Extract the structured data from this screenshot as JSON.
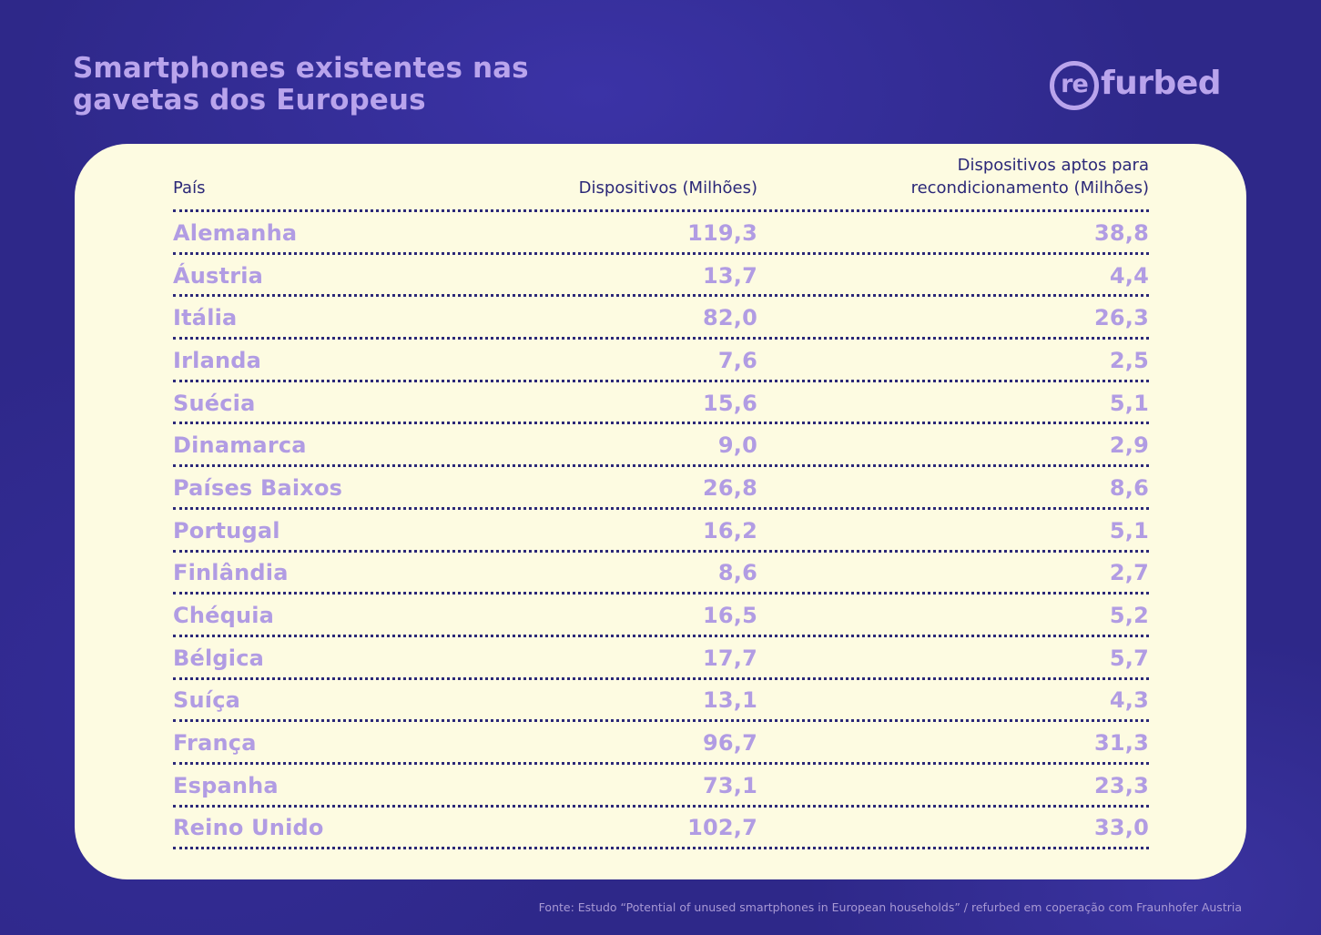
{
  "title": {
    "line1": "Smartphones existentes nas",
    "line2": "gavetas dos Europeus"
  },
  "logo": {
    "re": "re",
    "rest": "furbed"
  },
  "table": {
    "headers": {
      "country": "País",
      "devices": "Dispositivos (Milhões)",
      "refurbishable_line1": "Dispositivos aptos para",
      "refurbishable_line2": "recondicionamento (Milhões)"
    },
    "rows": [
      {
        "country": "Alemanha",
        "devices": "119,3",
        "refurbishable": "38,8"
      },
      {
        "country": "Áustria",
        "devices": "13,7",
        "refurbishable": "4,4"
      },
      {
        "country": "Itália",
        "devices": "82,0",
        "refurbishable": "26,3"
      },
      {
        "country": "Irlanda",
        "devices": "7,6",
        "refurbishable": "2,5"
      },
      {
        "country": "Suécia",
        "devices": "15,6",
        "refurbishable": "5,1"
      },
      {
        "country": "Dinamarca",
        "devices": "9,0",
        "refurbishable": "2,9"
      },
      {
        "country": "Países Baixos",
        "devices": "26,8",
        "refurbishable": "8,6"
      },
      {
        "country": "Portugal",
        "devices": "16,2",
        "refurbishable": "5,1"
      },
      {
        "country": "Finlândia",
        "devices": "8,6",
        "refurbishable": "2,7"
      },
      {
        "country": "Chéquia",
        "devices": "16,5",
        "refurbishable": "5,2"
      },
      {
        "country": "Bélgica",
        "devices": "17,7",
        "refurbishable": "5,7"
      },
      {
        "country": "Suíça",
        "devices": "13,1",
        "refurbishable": "4,3"
      },
      {
        "country": "França",
        "devices": "96,7",
        "refurbishable": "31,3"
      },
      {
        "country": "Espanha",
        "devices": "73,1",
        "refurbishable": "23,3"
      },
      {
        "country": "Reino Unido",
        "devices": "102,7",
        "refurbishable": "33,0"
      }
    ]
  },
  "footnote": "Fonte: Estudo “Potential of unused smartphones in European households” / refurbed em coperação com Fraunhofer Austria",
  "colors": {
    "background": "#2e2889",
    "accent": "#b9a4ec",
    "card": "#fdfbe1",
    "header_text": "#2b2878",
    "row_text": "#b19ce3"
  }
}
